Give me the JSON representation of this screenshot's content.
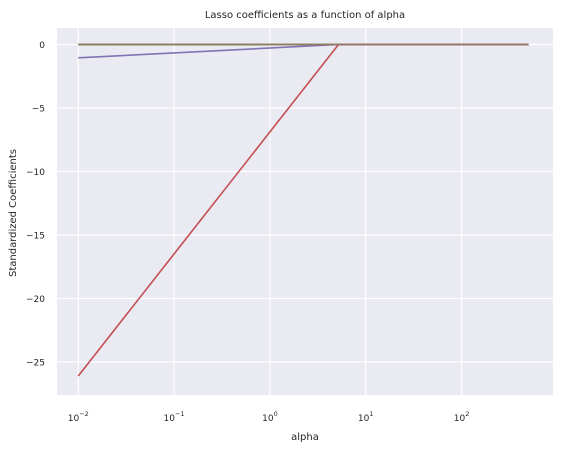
{
  "chart_data": {
    "type": "line",
    "title": "Lasso coefficients as a function of alpha",
    "xlabel": "alpha",
    "ylabel": "Standardized Coefficients",
    "xscale": "log",
    "xlim": [
      0.006,
      900
    ],
    "ylim": [
      -27.6,
      1.3
    ],
    "grid": true,
    "legend": "none",
    "background": "#eaeaf2",
    "grid_color": "#ffffff",
    "x_ticks": [
      {
        "value": 0.01,
        "base": "10",
        "exp": "−2"
      },
      {
        "value": 0.1,
        "base": "10",
        "exp": "−1"
      },
      {
        "value": 1,
        "base": "10",
        "exp": "0"
      },
      {
        "value": 10,
        "base": "10",
        "exp": "1"
      },
      {
        "value": 100,
        "base": "10",
        "exp": "2"
      }
    ],
    "y_ticks": [
      {
        "value": 0,
        "label": "0"
      },
      {
        "value": -5,
        "label": "−5"
      },
      {
        "value": -10,
        "label": "−10"
      },
      {
        "value": -15,
        "label": "−15"
      },
      {
        "value": -20,
        "label": "−20"
      },
      {
        "value": -25,
        "label": "−25"
      }
    ],
    "series": [
      {
        "color": "#4c72b0",
        "x": [
          0.01,
          500
        ],
        "y": [
          0,
          0
        ]
      },
      {
        "color": "#dd8452",
        "x": [
          0.01,
          500
        ],
        "y": [
          0,
          0
        ]
      },
      {
        "color": "#55a868",
        "x": [
          0.01,
          500
        ],
        "y": [
          0,
          0
        ]
      },
      {
        "color": "#c44e52",
        "x": [
          0.01,
          5.2,
          500
        ],
        "y": [
          -26.1,
          0,
          0
        ]
      },
      {
        "color": "#8172b3",
        "x": [
          0.01,
          5.2,
          500
        ],
        "y": [
          -1.05,
          0,
          0
        ]
      },
      {
        "color": "#937860",
        "x": [
          0.01,
          500
        ],
        "y": [
          0,
          0
        ]
      }
    ]
  }
}
